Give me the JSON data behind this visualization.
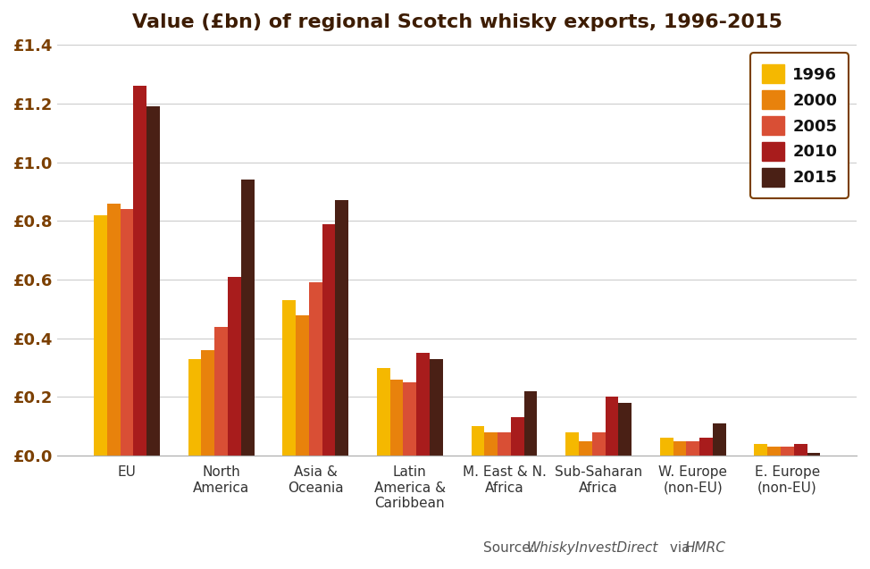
{
  "title": "Value (£bn) of regional Scotch whisky exports, 1996-2015",
  "categories": [
    "EU",
    "North\nAmerica",
    "Asia &\nOceania",
    "Latin\nAmerica &\nCaribbean",
    "M. East & N.\nAfrica",
    "Sub-Saharan\nAfrica",
    "W. Europe\n(non-EU)",
    "E. Europe\n(non-EU)"
  ],
  "years": [
    "1996",
    "2000",
    "2005",
    "2010",
    "2015"
  ],
  "colors": [
    "#F5B800",
    "#E8820C",
    "#D94F35",
    "#A81C1C",
    "#4A2015"
  ],
  "values": [
    [
      0.82,
      0.86,
      0.84,
      1.26,
      1.19
    ],
    [
      0.33,
      0.36,
      0.44,
      0.61,
      0.94
    ],
    [
      0.53,
      0.48,
      0.59,
      0.79,
      0.87
    ],
    [
      0.3,
      0.26,
      0.25,
      0.35,
      0.33
    ],
    [
      0.1,
      0.08,
      0.08,
      0.13,
      0.22
    ],
    [
      0.08,
      0.05,
      0.08,
      0.2,
      0.18
    ],
    [
      0.06,
      0.05,
      0.05,
      0.06,
      0.11
    ],
    [
      0.04,
      0.03,
      0.03,
      0.04,
      0.01
    ]
  ],
  "ylim": [
    0,
    1.4
  ],
  "yticks": [
    0.0,
    0.2,
    0.4,
    0.6,
    0.8,
    1.0,
    1.2,
    1.4
  ],
  "background_color": "#FFFFFF",
  "grid_color": "#CCCCCC",
  "title_color": "#3D1C02",
  "tick_color": "#7B3F00",
  "bar_width": 0.14,
  "legend_edge_color": "#7B3F00",
  "source_normal": "Source: ",
  "source_italic1": "WhiskyInvestDirect",
  "source_normal2": " via ",
  "source_italic2": "HMRC"
}
